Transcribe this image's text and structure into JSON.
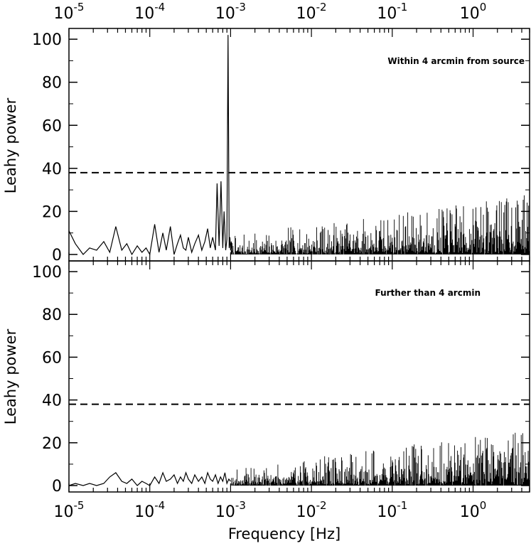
{
  "chart_data": [
    {
      "type": "line",
      "panel": "top",
      "annotation": "Within 4 arcmin from source",
      "xlabel": "",
      "ylabel": "Leahy power",
      "xscale": "log",
      "xlim": [
        1e-05,
        5.0
      ],
      "ylim": [
        -3,
        105
      ],
      "yticks": [
        0,
        20,
        40,
        60,
        80,
        100
      ],
      "x_tick_labels_top": [
        "10",
        "10",
        "10",
        "10",
        "10",
        "10"
      ],
      "x_tick_exponents": [
        "-5",
        "-4",
        "-3",
        "-2",
        "-1",
        "0"
      ],
      "threshold": 38,
      "grid": false,
      "series": [
        {
          "x": [
            1e-05,
            1.2e-05,
            1.5e-05,
            1.8e-05,
            2.2e-05,
            2.7e-05,
            3.2e-05,
            3.8e-05,
            4.5e-05,
            5.2e-05,
            6e-05,
            7e-05,
            8e-05,
            9e-05,
            0.0001,
            0.000115,
            0.00013,
            0.000145,
            0.00016,
            0.00018,
            0.0002,
            0.00022,
            0.00024,
            0.00026,
            0.00028,
            0.0003,
            0.00033,
            0.00036,
            0.0004,
            0.00044,
            0.00048,
            0.00052,
            0.00056,
            0.0006,
            0.00065,
            0.00068,
            0.00072,
            0.00076,
            0.0008,
            0.00083,
            0.00087,
            0.0009,
            0.00093,
            0.00096,
            0.00098,
            0.001,
            0.00102,
            0.00105
          ],
          "y": [
            11,
            5,
            0,
            3,
            2,
            6,
            1,
            13,
            2,
            5,
            0,
            4,
            1,
            3,
            0,
            14,
            1,
            10,
            2,
            13,
            0,
            5,
            9,
            3,
            2,
            8,
            1,
            5,
            9,
            2,
            6,
            12,
            3,
            8,
            2,
            33,
            4,
            34,
            3,
            20,
            2,
            7,
            102,
            3,
            8,
            2,
            6,
            1
          ]
        }
      ],
      "noise_envelope": {
        "description": "dense noise from 1e-3 Hz to 5 Hz",
        "x": [
          0.001,
          0.01,
          0.1,
          1.0,
          5.0
        ],
        "mean": [
          2,
          4,
          6,
          9,
          13
        ],
        "peak": [
          9,
          14,
          19,
          24,
          28
        ]
      }
    },
    {
      "type": "line",
      "panel": "bottom",
      "annotation": "Further than 4 arcmin",
      "xlabel": "Frequency [Hz]",
      "ylabel": "Leahy power",
      "xscale": "log",
      "xlim": [
        1e-05,
        5.0
      ],
      "ylim": [
        -3,
        105
      ],
      "yticks": [
        0,
        20,
        40,
        60,
        80,
        100
      ],
      "x_tick_labels": [
        "10",
        "10",
        "10",
        "10",
        "10",
        "10"
      ],
      "x_tick_exponents": [
        "-5",
        "-4",
        "-3",
        "-2",
        "-1",
        "0"
      ],
      "threshold": 38,
      "grid": false,
      "series": [
        {
          "x": [
            1e-05,
            1.2e-05,
            1.5e-05,
            1.8e-05,
            2.2e-05,
            2.7e-05,
            3.2e-05,
            3.8e-05,
            4.5e-05,
            5.2e-05,
            6e-05,
            7e-05,
            8e-05,
            9e-05,
            0.0001,
            0.000115,
            0.00013,
            0.000145,
            0.00016,
            0.00018,
            0.0002,
            0.00022,
            0.00024,
            0.00026,
            0.00028,
            0.0003,
            0.00033,
            0.00036,
            0.0004,
            0.00044,
            0.00048,
            0.00052,
            0.00056,
            0.0006,
            0.00065,
            0.0007,
            0.00075,
            0.0008,
            0.00085,
            0.0009,
            0.00095,
            0.001
          ],
          "y": [
            0,
            1,
            0,
            1,
            0,
            1,
            4,
            6,
            2,
            1,
            3,
            0,
            2,
            1,
            0,
            4,
            1,
            6,
            2,
            3,
            5,
            1,
            4,
            2,
            6,
            3,
            1,
            5,
            2,
            4,
            1,
            6,
            3,
            2,
            5,
            1,
            4,
            2,
            6,
            1,
            3,
            2
          ]
        }
      ],
      "noise_envelope": {
        "description": "dense noise from 1e-3 Hz to 5 Hz",
        "x": [
          0.001,
          0.01,
          0.1,
          1.0,
          5.0
        ],
        "mean": [
          2,
          4,
          6,
          9,
          13
        ],
        "peak": [
          8,
          13,
          18,
          23,
          26
        ]
      }
    }
  ]
}
